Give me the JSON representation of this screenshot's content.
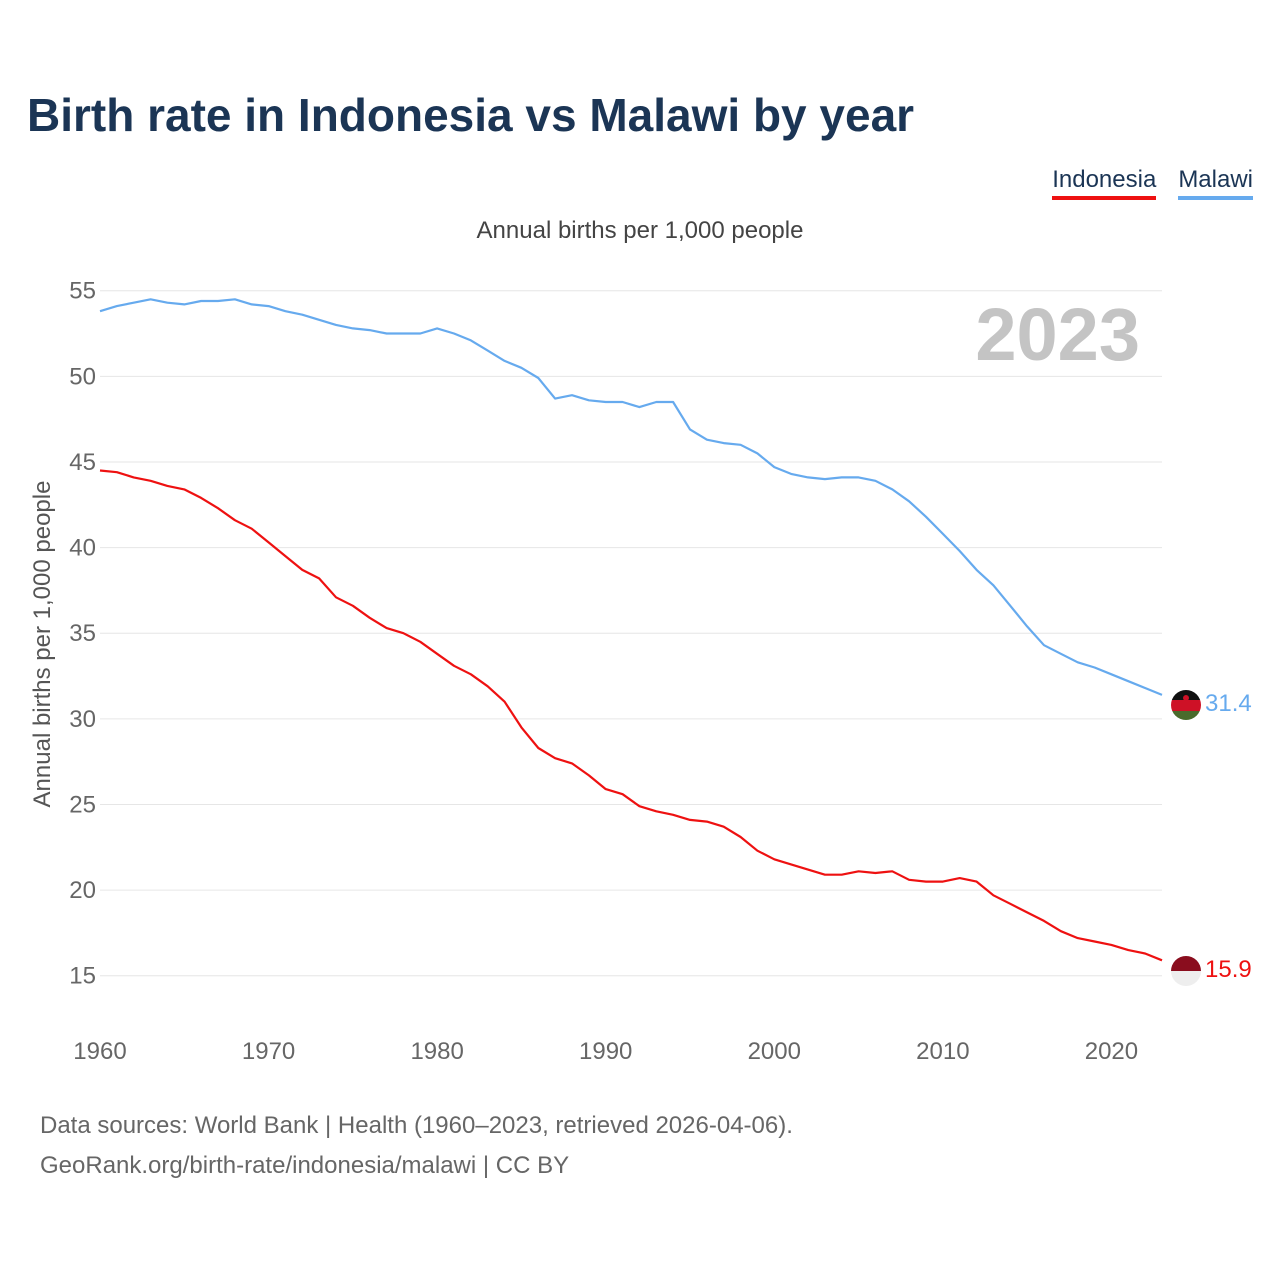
{
  "header": {
    "title": "Birth rate in Indonesia vs Malawi by year",
    "subtitle": "Annual births per 1,000 people"
  },
  "legend": [
    {
      "label": "Indonesia",
      "color": "#ee1111"
    },
    {
      "label": "Malawi",
      "color": "#66aaee"
    }
  ],
  "chart_data": {
    "type": "line",
    "title": "Birth rate in Indonesia vs Malawi by year",
    "subtitle": "Annual births per 1,000 people",
    "xlabel": "",
    "ylabel": "Annual births per 1,000 people",
    "xlim": [
      1960,
      2023
    ],
    "ylim": [
      13,
      56.5
    ],
    "xticks": [
      1960,
      1970,
      1980,
      1990,
      2000,
      2010,
      2020
    ],
    "xtick_labels": [
      "1960",
      "1970",
      "1980",
      "1990",
      "2000",
      "2010",
      "2020"
    ],
    "yticks": [
      15,
      20,
      25,
      30,
      35,
      40,
      45,
      50,
      55
    ],
    "ytick_labels": [
      "15",
      "20",
      "25",
      "30",
      "35",
      "40",
      "45",
      "50",
      "55"
    ],
    "grid": true,
    "year_label": "2023",
    "x": [
      1960,
      1961,
      1962,
      1963,
      1964,
      1965,
      1966,
      1967,
      1968,
      1969,
      1970,
      1971,
      1972,
      1973,
      1974,
      1975,
      1976,
      1977,
      1978,
      1979,
      1980,
      1981,
      1982,
      1983,
      1984,
      1985,
      1986,
      1987,
      1988,
      1989,
      1990,
      1991,
      1992,
      1993,
      1994,
      1995,
      1996,
      1997,
      1998,
      1999,
      2000,
      2001,
      2002,
      2003,
      2004,
      2005,
      2006,
      2007,
      2008,
      2009,
      2010,
      2011,
      2012,
      2013,
      2014,
      2015,
      2016,
      2017,
      2018,
      2019,
      2020,
      2021,
      2022,
      2023
    ],
    "series": [
      {
        "name": "Indonesia",
        "color": "#ee1111",
        "end_label": "15.9",
        "values": [
          44.5,
          44.4,
          44.1,
          43.9,
          43.6,
          43.4,
          42.9,
          42.3,
          41.6,
          41.1,
          40.3,
          39.5,
          38.7,
          38.2,
          37.1,
          36.6,
          35.9,
          35.3,
          35.0,
          34.5,
          33.8,
          33.1,
          32.6,
          31.9,
          31.0,
          29.5,
          28.3,
          27.7,
          27.4,
          26.7,
          25.9,
          25.6,
          24.9,
          24.6,
          24.4,
          24.1,
          24.0,
          23.7,
          23.1,
          22.3,
          21.8,
          21.5,
          21.2,
          20.9,
          20.9,
          21.1,
          21.0,
          21.1,
          20.6,
          20.5,
          20.5,
          20.7,
          20.5,
          19.7,
          19.2,
          18.7,
          18.2,
          17.6,
          17.2,
          17.0,
          16.8,
          16.5,
          16.3,
          15.9
        ]
      },
      {
        "name": "Malawi",
        "color": "#66aaee",
        "end_label": "31.4",
        "values": [
          53.8,
          54.1,
          54.3,
          54.5,
          54.3,
          54.2,
          54.4,
          54.4,
          54.5,
          54.2,
          54.1,
          53.8,
          53.6,
          53.3,
          53.0,
          52.8,
          52.7,
          52.5,
          52.5,
          52.5,
          52.8,
          52.5,
          52.1,
          51.5,
          50.9,
          50.5,
          49.9,
          48.7,
          48.9,
          48.6,
          48.5,
          48.5,
          48.2,
          48.5,
          48.5,
          46.9,
          46.3,
          46.1,
          46.0,
          45.5,
          44.7,
          44.3,
          44.1,
          44.0,
          44.1,
          44.1,
          43.9,
          43.4,
          42.7,
          41.8,
          40.8,
          39.8,
          38.7,
          37.8,
          36.6,
          35.4,
          34.3,
          33.8,
          33.3,
          33.0,
          32.6,
          32.2,
          31.8,
          31.4
        ]
      }
    ]
  },
  "footer": {
    "sources": "Data sources: World Bank | Health (1960–2023, retrieved 2026-04-06).",
    "credit": "GeoRank.org/birth-rate/indonesia/malawi | CC BY"
  }
}
